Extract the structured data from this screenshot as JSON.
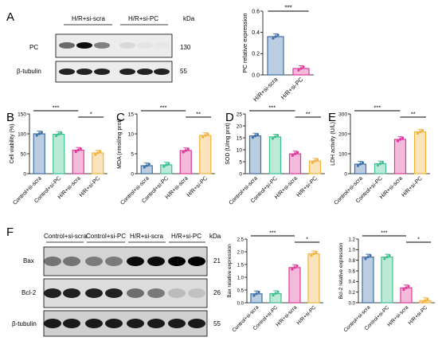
{
  "panel_letters": [
    "A",
    "B",
    "C",
    "D",
    "E",
    "F"
  ],
  "blot_A": {
    "groups": [
      "H/R+si-scra",
      "H/R+si-PC"
    ],
    "kda_label": "kDa",
    "rows": [
      {
        "label": "PC",
        "kda": "130"
      },
      {
        "label": "β-tubulin",
        "kda": "55"
      }
    ]
  },
  "blot_F": {
    "groups": [
      "Control+si-scra",
      "Control+si-PC",
      "H/R+si-scra",
      "H/R+si-PC"
    ],
    "kda_label": "kDa",
    "rows": [
      {
        "label": "Bax",
        "kda": "21"
      },
      {
        "label": "Bcl-2",
        "kda": "26"
      },
      {
        "label": "β-tubulin",
        "kda": "55"
      }
    ]
  },
  "colors": {
    "control_si_scra": "#3d6fa8",
    "control_si_pc": "#3fbf8f",
    "hr_si_scra": "#e0389a",
    "hr_si_pc": "#f3b23b"
  },
  "chart_data": [
    {
      "id": "A",
      "type": "bar",
      "categories": [
        "H/R+si-scra",
        "H/R+si-PC"
      ],
      "values": [
        0.36,
        0.06
      ],
      "ylabel": "PC relative expression",
      "ylim": [
        0,
        0.6
      ],
      "yticks": [
        "0.0",
        "0.2",
        "0.4",
        "0.6"
      ],
      "yticks_val": [
        0,
        0.2,
        0.4,
        0.6
      ],
      "sig": [
        {
          "from": 0,
          "to": 1,
          "label": "***"
        }
      ]
    },
    {
      "id": "B",
      "type": "bar",
      "categories": [
        "Control+si-scra",
        "Control+si-PC",
        "H/R+si-scra",
        "H/R+si-PC"
      ],
      "values": [
        100,
        99,
        59,
        52
      ],
      "ylabel": "Cell viability (%)",
      "ylim": [
        0,
        150
      ],
      "yticks": [
        "0",
        "50",
        "100",
        "150"
      ],
      "yticks_val": [
        0,
        50,
        100,
        150
      ],
      "sig": [
        {
          "from": 0,
          "to": 2,
          "label": "***"
        },
        {
          "from": 2,
          "to": 3,
          "label": "*"
        }
      ]
    },
    {
      "id": "C",
      "type": "bar",
      "categories": [
        "Control+si-scra",
        "Control+si-PC",
        "H/R+si-scra",
        "H/R+si-PC"
      ],
      "values": [
        2.0,
        2.2,
        5.8,
        9.6
      ],
      "ylabel": "MDA (nmol/mg prot)",
      "ylim": [
        0,
        15
      ],
      "yticks": [
        "0",
        "5",
        "10",
        "15"
      ],
      "yticks_val": [
        0,
        5,
        10,
        15
      ],
      "sig": [
        {
          "from": 0,
          "to": 2,
          "label": "***"
        },
        {
          "from": 2,
          "to": 3,
          "label": "**"
        }
      ]
    },
    {
      "id": "D",
      "type": "bar",
      "categories": [
        "Control+si-scra",
        "Control+si-PC",
        "H/R+si-scra",
        "H/R+si-PC"
      ],
      "values": [
        15.8,
        15.4,
        8.3,
        5.3
      ],
      "ylabel": "SOD (U/mg prot)",
      "ylim": [
        0,
        25
      ],
      "yticks": [
        "0",
        "5",
        "10",
        "15",
        "20",
        "25"
      ],
      "yticks_val": [
        0,
        5,
        10,
        15,
        20,
        25
      ],
      "sig": [
        {
          "from": 0,
          "to": 2,
          "label": "***"
        },
        {
          "from": 2,
          "to": 3,
          "label": "**"
        }
      ]
    },
    {
      "id": "E",
      "type": "bar",
      "categories": [
        "Control+si-scra",
        "Control+si-PC",
        "H/R+si-scra",
        "H/R+si-PC"
      ],
      "values": [
        48,
        50,
        172,
        210
      ],
      "ylabel": "LDH activity (U/L)",
      "ylim": [
        0,
        300
      ],
      "yticks": [
        "0",
        "100",
        "200",
        "300"
      ],
      "yticks_val": [
        0,
        100,
        200,
        300
      ],
      "sig": [
        {
          "from": 0,
          "to": 2,
          "label": "***"
        },
        {
          "from": 2,
          "to": 3,
          "label": "**"
        }
      ]
    },
    {
      "id": "F1",
      "type": "bar",
      "categories": [
        "Control+si-scra",
        "Control+si-PC",
        "H/R+si-scra",
        "H/R+si-PC"
      ],
      "values": [
        0.35,
        0.36,
        1.38,
        1.92
      ],
      "ylabel": "Bax relative expression",
      "ylim": [
        0,
        2.5
      ],
      "yticks": [
        "0.0",
        "0.5",
        "1.0",
        "1.5",
        "2.0",
        "2.5"
      ],
      "yticks_val": [
        0,
        0.5,
        1,
        1.5,
        2,
        2.5
      ],
      "sig": [
        {
          "from": 0,
          "to": 2,
          "label": "***"
        },
        {
          "from": 2,
          "to": 3,
          "label": "*"
        }
      ]
    },
    {
      "id": "F2",
      "type": "bar",
      "categories": [
        "Control+si-scra",
        "Control+si-PC",
        "H/R+si-scra",
        "H/R+si-PC"
      ],
      "values": [
        0.86,
        0.86,
        0.28,
        0.04
      ],
      "ylabel": "Bcl-2 relative expression",
      "ylim": [
        0,
        1.2
      ],
      "yticks": [
        "0.0",
        "0.2",
        "0.4",
        "0.6",
        "0.8",
        "1.0",
        "1.2"
      ],
      "yticks_val": [
        0,
        0.2,
        0.4,
        0.6,
        0.8,
        1.0,
        1.2
      ],
      "sig": [
        {
          "from": 0,
          "to": 2,
          "label": "***"
        },
        {
          "from": 2,
          "to": 3,
          "label": "*"
        }
      ]
    }
  ]
}
